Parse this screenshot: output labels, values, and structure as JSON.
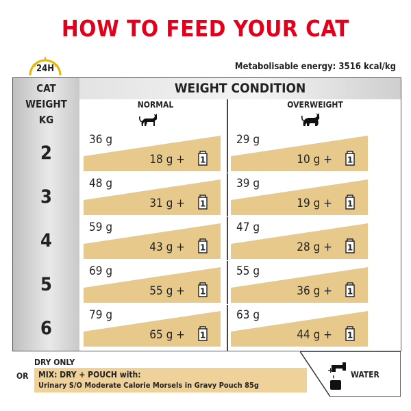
{
  "title": "HOW TO FEED YOUR CAT",
  "clock_label": "24H",
  "energy": "Metabolisable energy: 3516 kcal/kg",
  "cat_weight_header": [
    "CAT",
    "WEIGHT",
    "KG"
  ],
  "weight_condition": "WEIGHT CONDITION",
  "columns": [
    "NORMAL",
    "OVERWEIGHT"
  ],
  "rows": [
    {
      "kg": "2",
      "normal_dry": "36 g",
      "normal_mix": "18 g  + ",
      "over_dry": "29 g",
      "over_mix": "10 g  + "
    },
    {
      "kg": "3",
      "normal_dry": "48 g",
      "normal_mix": "31 g  + ",
      "over_dry": "39 g",
      "over_mix": "19 g  + "
    },
    {
      "kg": "4",
      "normal_dry": "59 g",
      "normal_mix": "43 g  + ",
      "over_dry": "47 g",
      "over_mix": "28 g  + "
    },
    {
      "kg": "5",
      "normal_dry": "69 g",
      "normal_mix": "55 g  + ",
      "over_dry": "55 g",
      "over_mix": "36 g  + "
    },
    {
      "kg": "6",
      "normal_dry": "79 g",
      "normal_mix": "65 g  + ",
      "over_dry": "63 g",
      "over_mix": "44 g  + "
    }
  ],
  "pouch_count": "1",
  "legend": {
    "dry_only": "DRY ONLY",
    "or": "OR",
    "mix_title": "MIX: DRY + POUCH with:",
    "mix_product": "Urinary S/O Moderate Calorie Morsels in Gravy Pouch 85g",
    "plus": "+",
    "water": "WATER"
  },
  "colors": {
    "accent": "#e2001a",
    "tan": "#e7c98c",
    "clock": "#e8b400"
  }
}
